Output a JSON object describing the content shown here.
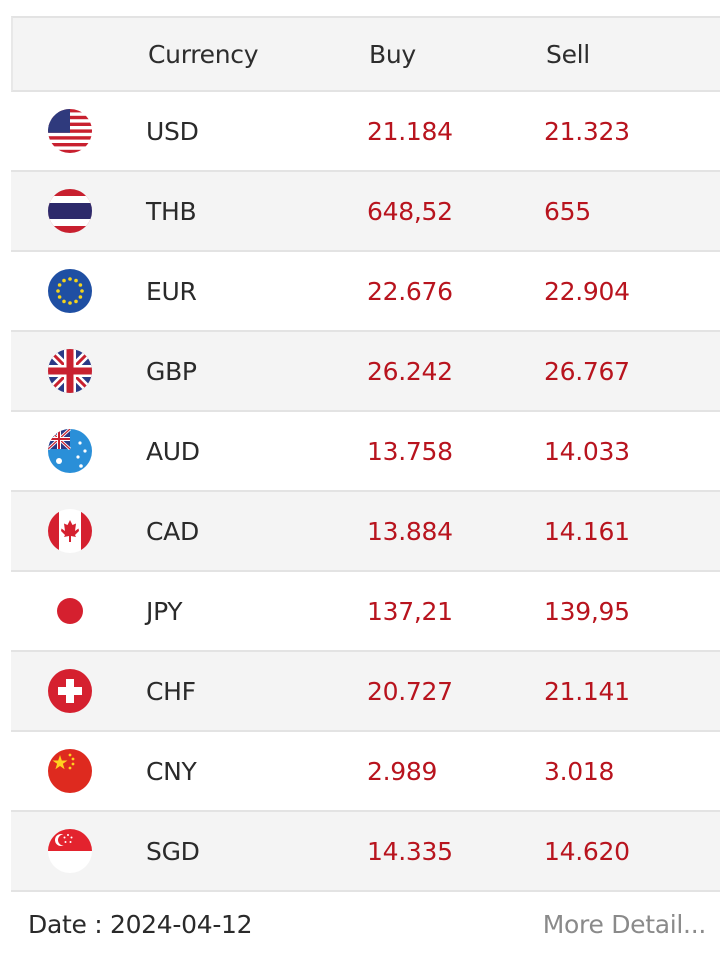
{
  "table": {
    "headers": {
      "currency": "Currency",
      "buy": "Buy",
      "sell": "Sell"
    },
    "rows": [
      {
        "code": "USD",
        "buy": "21.184",
        "sell": "21.323",
        "flag": "us-flag-icon"
      },
      {
        "code": "THB",
        "buy": "648,52",
        "sell": "655",
        "flag": "thailand-flag-icon"
      },
      {
        "code": "EUR",
        "buy": "22.676",
        "sell": "22.904",
        "flag": "eu-flag-icon"
      },
      {
        "code": "GBP",
        "buy": "26.242",
        "sell": "26.767",
        "flag": "uk-flag-icon"
      },
      {
        "code": "AUD",
        "buy": "13.758",
        "sell": "14.033",
        "flag": "australia-flag-icon"
      },
      {
        "code": "CAD",
        "buy": "13.884",
        "sell": "14.161",
        "flag": "canada-flag-icon"
      },
      {
        "code": "JPY",
        "buy": "137,21",
        "sell": "139,95",
        "flag": "japan-flag-icon"
      },
      {
        "code": "CHF",
        "buy": "20.727",
        "sell": "21.141",
        "flag": "switzerland-flag-icon"
      },
      {
        "code": "CNY",
        "buy": "2.989",
        "sell": "3.018",
        "flag": "china-flag-icon"
      },
      {
        "code": "SGD",
        "buy": "14.335",
        "sell": "14.620",
        "flag": "singapore-flag-icon"
      }
    ]
  },
  "footer": {
    "date": "Date : 2024-04-12",
    "more_link": "More Detail..."
  },
  "colors": {
    "rate_red": "#b8141e",
    "text": "#2a2a2a",
    "link_gray": "#8a8a8a",
    "stripe": "#f4f4f4"
  }
}
